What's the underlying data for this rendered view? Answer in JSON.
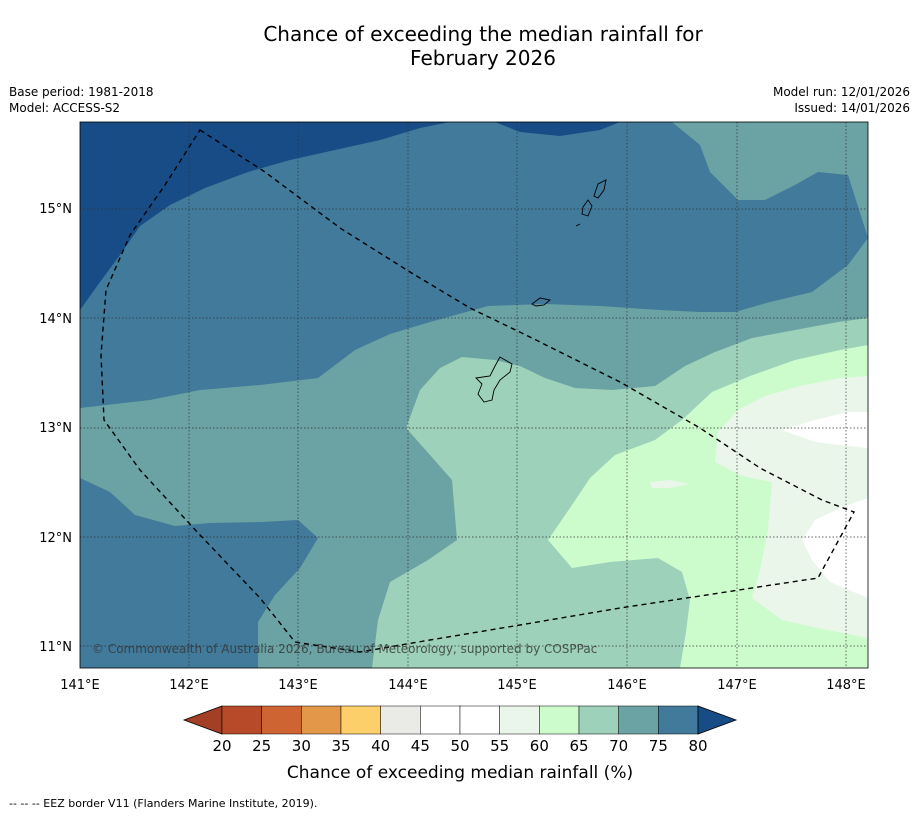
{
  "title_line1": "Chance of exceeding the median rainfall for",
  "title_line2": "February 2026",
  "base_period": "Base period: 1981-2018",
  "model": "Model: ACCESS-S2",
  "model_run": "Model run: 12/01/2026",
  "issued": "Issued: 14/01/2026",
  "copyright": "© Commonwealth of Australia 2026, Bureau of Meteorology, supported by COSPPac",
  "lon_ticks": [
    "141°E",
    "142°E",
    "143°E",
    "144°E",
    "145°E",
    "146°E",
    "147°E",
    "148°E"
  ],
  "lat_ticks": [
    "15°N",
    "14°N",
    "13°N",
    "12°N",
    "11°N"
  ],
  "colorbar": {
    "title": "Chance of exceeding median rainfall (%)",
    "ticks": [
      "20",
      "25",
      "30",
      "35",
      "40",
      "45",
      "50",
      "55",
      "60",
      "65",
      "70",
      "75",
      "80"
    ],
    "colors": [
      "#a33f24",
      "#b74a28",
      "#cf6433",
      "#e39748",
      "#fccf6a",
      "#eaeae6",
      "#ffffff",
      "#ffffff",
      "#eaf6ea",
      "#ccfccc",
      "#9dd1ba",
      "#6ba2a3",
      "#417a9a",
      "#174c86"
    ]
  },
  "legend_footer": "--  --  -- EEZ border V11 (Flanders Marine Institute, 2019)."
}
